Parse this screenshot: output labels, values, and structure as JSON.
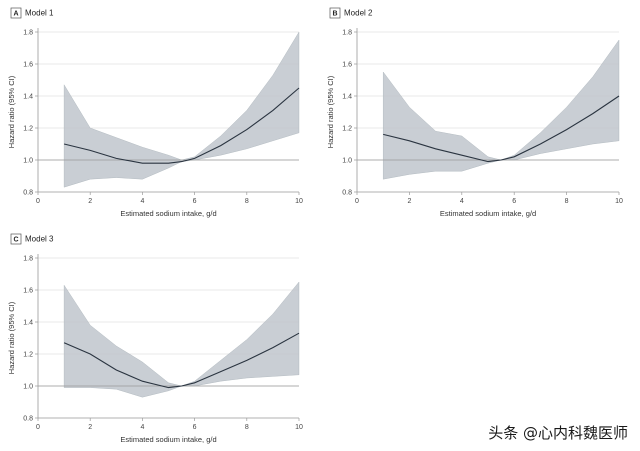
{
  "watermark": "头条 @心内科魏医师",
  "colors": {
    "band": "#bfc6cc",
    "line": "#2a3440",
    "grid": "#d4d4d4",
    "axis": "#999999",
    "reference": "#9a9a9a"
  },
  "chart_data": [
    {
      "type": "line",
      "panel_letter": "A",
      "title": "Model 1",
      "xlabel": "Estimated sodium intake, g/d",
      "ylabel": "Hazard ratio (95% CI)",
      "xlim": [
        0,
        10
      ],
      "ylim": [
        0.8,
        1.8
      ],
      "xticks": [
        0,
        2,
        4,
        6,
        8,
        10
      ],
      "yticks": [
        0.8,
        1.0,
        1.2,
        1.4,
        1.6,
        1.8
      ],
      "ytick_labels": [
        "0.8",
        "1.0",
        "1.2",
        "1.4",
        "1.6",
        "1.8"
      ],
      "reference_line": 1.0,
      "grid": "horizontal",
      "series": [
        {
          "x": [
            1,
            2,
            3,
            4,
            5,
            5.5,
            6,
            7,
            8,
            9,
            10
          ],
          "y": [
            1.1,
            1.06,
            1.01,
            0.98,
            0.98,
            0.99,
            1.01,
            1.09,
            1.19,
            1.31,
            1.45
          ],
          "lower": [
            0.83,
            0.88,
            0.89,
            0.88,
            0.95,
            0.99,
            1.0,
            1.03,
            1.07,
            1.12,
            1.17
          ],
          "upper": [
            1.47,
            1.2,
            1.14,
            1.08,
            1.03,
            1.0,
            1.02,
            1.15,
            1.31,
            1.53,
            1.8
          ]
        }
      ]
    },
    {
      "type": "line",
      "panel_letter": "B",
      "title": "Model 2",
      "xlabel": "Estimated sodium intake, g/d",
      "ylabel": "Hazard ratio (95% CI)",
      "xlim": [
        0,
        10
      ],
      "ylim": [
        0.8,
        1.8
      ],
      "xticks": [
        0,
        2,
        4,
        6,
        8,
        10
      ],
      "yticks": [
        0.8,
        1.0,
        1.2,
        1.4,
        1.6,
        1.8
      ],
      "ytick_labels": [
        "0.8",
        "1.0",
        "1.2",
        "1.4",
        "1.6",
        "1.8"
      ],
      "reference_line": 1.0,
      "grid": "horizontal",
      "series": [
        {
          "x": [
            1,
            2,
            3,
            4,
            5,
            5.5,
            6,
            7,
            8,
            9,
            10
          ],
          "y": [
            1.16,
            1.12,
            1.07,
            1.03,
            0.99,
            1.0,
            1.02,
            1.1,
            1.19,
            1.29,
            1.4
          ],
          "lower": [
            0.88,
            0.91,
            0.93,
            0.93,
            0.98,
            1.0,
            1.0,
            1.04,
            1.07,
            1.1,
            1.12
          ],
          "upper": [
            1.55,
            1.33,
            1.18,
            1.15,
            1.02,
            1.0,
            1.03,
            1.17,
            1.33,
            1.52,
            1.75
          ]
        }
      ]
    },
    {
      "type": "line",
      "panel_letter": "C",
      "title": "Model 3",
      "xlabel": "Estimated sodium intake, g/d",
      "ylabel": "Hazard ratio (95% CI)",
      "xlim": [
        0,
        10
      ],
      "ylim": [
        0.8,
        1.8
      ],
      "xticks": [
        0,
        2,
        4,
        6,
        8,
        10
      ],
      "yticks": [
        0.8,
        1.0,
        1.2,
        1.4,
        1.6,
        1.8
      ],
      "ytick_labels": [
        "0.8",
        "1.0",
        "1.2",
        "1.4",
        "1.6",
        "1.8"
      ],
      "reference_line": 1.0,
      "grid": "horizontal",
      "series": [
        {
          "x": [
            1,
            2,
            3,
            4,
            5,
            5.5,
            6,
            7,
            8,
            9,
            10
          ],
          "y": [
            1.27,
            1.2,
            1.1,
            1.03,
            0.99,
            1.0,
            1.02,
            1.09,
            1.16,
            1.24,
            1.33
          ],
          "lower": [
            0.99,
            0.99,
            0.98,
            0.93,
            0.97,
            1.0,
            1.0,
            1.03,
            1.05,
            1.06,
            1.07
          ],
          "upper": [
            1.63,
            1.38,
            1.25,
            1.15,
            1.02,
            1.0,
            1.03,
            1.16,
            1.29,
            1.45,
            1.65
          ]
        }
      ]
    }
  ]
}
